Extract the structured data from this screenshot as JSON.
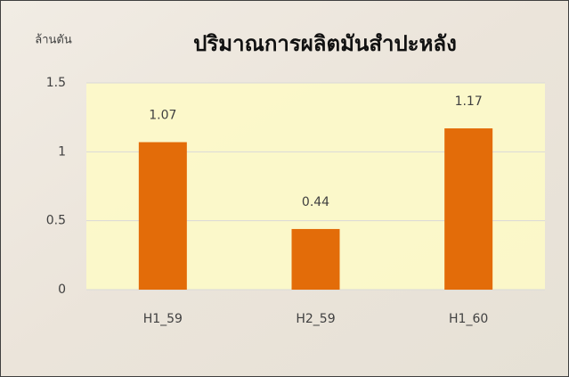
{
  "chart_data": {
    "type": "bar",
    "title": "ปริมาณการผลิตมันสำปะหลัง",
    "y_label": "ล้านตัน",
    "categories": [
      "H1_59",
      "H2_59",
      "H1_60"
    ],
    "values": [
      1.07,
      0.44,
      1.17
    ],
    "color": "#e36c09",
    "ylim": [
      0,
      1.5
    ],
    "yticks": [
      0,
      0.5,
      1,
      1.5
    ],
    "grid": true
  }
}
